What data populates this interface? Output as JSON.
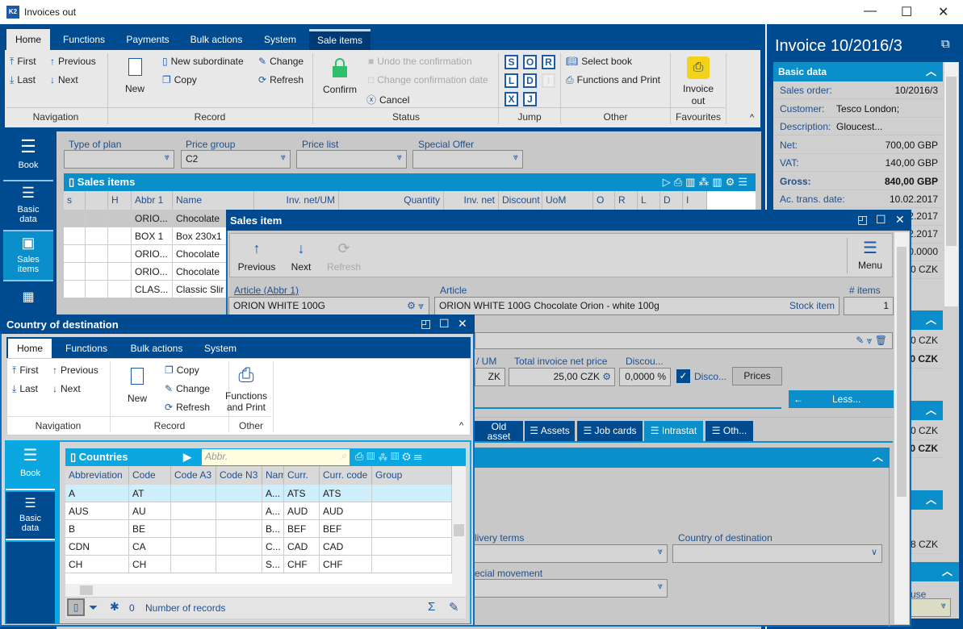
{
  "window": {
    "title": "Invoices out",
    "icon": "k2-logo-icon",
    "controls": [
      "minimize",
      "maximize",
      "close"
    ]
  },
  "main": {
    "tabs": [
      "Home",
      "Functions",
      "Payments",
      "Bulk actions",
      "System",
      "Sale items"
    ],
    "active_tab": "Home",
    "ribbon": {
      "navigation": {
        "label": "Navigation",
        "first": "First",
        "previous": "Previous",
        "last": "Last",
        "next": "Next"
      },
      "record": {
        "label": "Record",
        "new": "New",
        "new_subordinate": "New subordinate",
        "copy": "Copy",
        "change": "Change",
        "refresh": "Refresh"
      },
      "status": {
        "label": "Status",
        "confirm": "Confirm",
        "undo": "Undo the confirmation",
        "change_date": "Change confirmation date",
        "cancel": "Cancel"
      },
      "jump": {
        "label": "Jump",
        "buttons": [
          "S",
          "O",
          "R",
          "L",
          "D",
          "I",
          "X",
          "J"
        ]
      },
      "other": {
        "label": "Other",
        "select_book": "Select book",
        "functions_print": "Functions and Print"
      },
      "favourites": {
        "label": "Favourites",
        "invoice_out_1": "Invoice",
        "invoice_out_2": "out"
      }
    },
    "sidebar": {
      "book": "Book",
      "basic_1": "Basic",
      "basic_2": "data",
      "sales_1": "Sales",
      "sales_2": "items"
    },
    "filters": {
      "type_of_plan": {
        "label": "Type of plan",
        "value": ""
      },
      "price_group": {
        "label": "Price group",
        "value": "C2"
      },
      "price_list": {
        "label": "Price list",
        "value": ""
      },
      "special_offer": {
        "label": "Special Offer",
        "value": ""
      }
    },
    "grid": {
      "title": "Sales items",
      "columns": [
        "s",
        "",
        "H",
        "Abbr 1",
        "Name",
        "Inv. net/UM",
        "Quantity",
        "Inv. net",
        "Discount I",
        "UoM",
        "O",
        "R",
        "L",
        "D",
        "I"
      ],
      "rows": [
        [
          "",
          "",
          "",
          "ORIO...",
          "Chocolate"
        ],
        [
          "",
          "",
          "",
          "BOX 1",
          "Box 230x1"
        ],
        [
          "",
          "",
          "",
          "ORIO...",
          "Chocolate"
        ],
        [
          "",
          "",
          "",
          "ORIO...",
          "Chocolate"
        ],
        [
          "",
          "",
          "",
          "CLAS...",
          "Classic Slir"
        ]
      ]
    }
  },
  "sales_item": {
    "title": "Sales item",
    "toolbar": {
      "previous": "Previous",
      "next": "Next",
      "refresh": "Refresh",
      "menu": "Menu"
    },
    "article_abbr": {
      "label": "Article (Abbr 1)",
      "value": "ORION WHITE 100G"
    },
    "article": {
      "label": "Article",
      "value": "ORION WHITE 100G Chocolate Orion - white 100g",
      "type": "Stock item"
    },
    "items": {
      "label": "# items",
      "value": "1"
    },
    "price_um": {
      "label": "/ UM",
      "value": "ZK"
    },
    "total_net": {
      "label": "Total invoice net price",
      "value": "25,00 CZK"
    },
    "discount": {
      "label": "Discou...",
      "value": "0,0000 %"
    },
    "disco_check": {
      "label": "Disco...",
      "checked": true
    },
    "prices_button": "Prices",
    "less_button": "Less...",
    "tabs": [
      "Old asset",
      "Assets",
      "Job cards",
      "Intrastat",
      "Oth..."
    ],
    "active_tab": "Intrastat",
    "delivery_terms": {
      "label": "livery terms",
      "value": ""
    },
    "country_of_destination": {
      "label": "Country of destination",
      "value": ""
    },
    "special_movement": {
      "label": "ecial movement",
      "value": ""
    }
  },
  "country": {
    "title": "Country of destination",
    "tabs": [
      "Home",
      "Functions",
      "Bulk actions",
      "System"
    ],
    "ribbon": {
      "navigation": {
        "label": "Navigation",
        "first": "First",
        "previous": "Previous",
        "last": "Last",
        "next": "Next"
      },
      "record": {
        "label": "Record",
        "new": "New",
        "copy": "Copy",
        "change": "Change",
        "refresh": "Refresh"
      },
      "other": {
        "label": "Other",
        "fp_1": "Functions",
        "fp_2": "and Print"
      }
    },
    "sidebar": {
      "book": "Book",
      "basic_1": "Basic",
      "basic_2": "data"
    },
    "grid": {
      "title": "Countries",
      "search_placeholder": "Abbr.",
      "columns": [
        "Abbreviation",
        "Code",
        "Code A3",
        "Code N3",
        "Nam",
        "Curr.",
        "Curr. code",
        "Group"
      ],
      "rows": [
        [
          "A",
          "AT",
          "",
          "",
          "A...",
          "ATS",
          "ATS",
          ""
        ],
        [
          "AUS",
          "AU",
          "",
          "",
          "A...",
          "AUD",
          "AUD",
          ""
        ],
        [
          "B",
          "BE",
          "",
          "",
          "B...",
          "BEF",
          "BEF",
          ""
        ],
        [
          "CDN",
          "CA",
          "",
          "",
          "C...",
          "CAD",
          "CAD",
          ""
        ],
        [
          "CH",
          "CH",
          "",
          "",
          "S...",
          "CHF",
          "CHF",
          ""
        ]
      ],
      "record_count": "0",
      "record_label": "Number of records"
    }
  },
  "right_panel": {
    "title": "Invoice 10/2016/3",
    "basic_data": "Basic data",
    "rows": [
      {
        "label": "Sales order:",
        "value": "10/2016/3"
      },
      {
        "label": "Customer:",
        "value": "Tesco London; Gloucest..."
      },
      {
        "label": "Description:",
        "value": ""
      },
      {
        "label": "Net:",
        "value": "700,00 GBP"
      },
      {
        "label": "VAT:",
        "value": "140,00 GBP"
      },
      {
        "label": "Gross:",
        "value": "840,00 GBP"
      },
      {
        "label": "Ac. trans. date:",
        "value": "10.02.2017"
      }
    ],
    "partial": [
      "2.2017",
      "2.2017",
      "0.0000",
      "0 CZK",
      "0 CZK",
      "0 CZK",
      "0 CZK",
      "0 CZK",
      "8 CZK"
    ],
    "partial_label": "use"
  },
  "colors": {
    "dark_blue": "#004b8f",
    "accent": "#0a8fcb",
    "cyan": "#0aa7e0"
  }
}
